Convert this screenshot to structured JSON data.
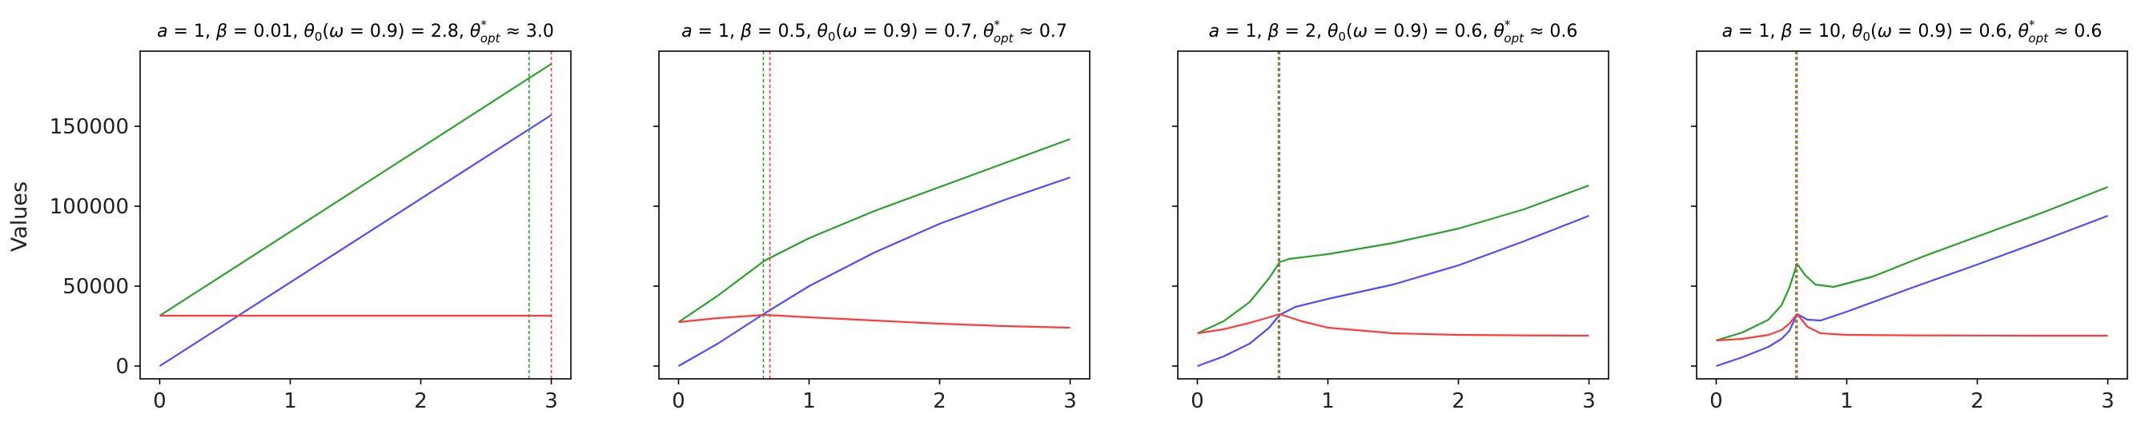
{
  "figure": {
    "ylabel": "Values"
  },
  "chart_data": [
    {
      "type": "line",
      "title_plain": "a = 1, β = 0.01, θ₀(ω = 0.9) = 2.8, θ*opt ≈ 3.0",
      "title_parts": {
        "a": "1",
        "beta": "0.01",
        "theta0": "2.8",
        "omega": "0.9",
        "theta_opt": "3.0"
      },
      "xlim": [
        -0.15,
        3.15
      ],
      "ylim": [
        -8000,
        197000
      ],
      "xticks": [
        0,
        1,
        2,
        3
      ],
      "yticks": [
        0,
        50000,
        100000,
        150000
      ],
      "xtick_labels": [
        "0",
        "1",
        "2",
        "3"
      ],
      "ytick_labels": [
        "0",
        "50000",
        "100000",
        "150000"
      ],
      "vlines": [
        {
          "x": 2.83,
          "color": "#2ca02c"
        },
        {
          "x": 3.0,
          "color": "#ff3b3b"
        }
      ],
      "series": [
        {
          "color": "#2ca02c",
          "x": [
            0,
            3
          ],
          "y": [
            31500,
            189000
          ]
        },
        {
          "color": "#4d4dff",
          "x": [
            0,
            3
          ],
          "y": [
            0,
            157000
          ]
        },
        {
          "color": "#ff3b3b",
          "x": [
            0,
            3
          ],
          "y": [
            31500,
            31500
          ]
        }
      ]
    },
    {
      "type": "line",
      "title_plain": "a = 1, β = 0.5, θ₀(ω = 0.9) = 0.7, θ*opt ≈ 0.7",
      "title_parts": {
        "a": "1",
        "beta": "0.5",
        "theta0": "0.7",
        "omega": "0.9",
        "theta_opt": "0.7"
      },
      "xlim": [
        -0.15,
        3.15
      ],
      "ylim": [
        -8000,
        197000
      ],
      "xticks": [
        0,
        1,
        2,
        3
      ],
      "yticks": [
        0,
        50000,
        100000,
        150000
      ],
      "xtick_labels": [
        "0",
        "1",
        "2",
        "3"
      ],
      "ytick_labels": [
        "",
        "",
        "",
        ""
      ],
      "vlines": [
        {
          "x": 0.65,
          "color": "#2ca02c"
        },
        {
          "x": 0.7,
          "color": "#ff3b3b"
        }
      ],
      "series": [
        {
          "color": "#2ca02c",
          "x": [
            0,
            0.3,
            0.66,
            1.0,
            1.5,
            2.0,
            2.5,
            3.0
          ],
          "y": [
            27500,
            44000,
            66000,
            80000,
            97000,
            112000,
            127000,
            142000
          ]
        },
        {
          "color": "#4d4dff",
          "x": [
            0,
            0.3,
            0.66,
            1.0,
            1.5,
            2.0,
            2.5,
            3.0
          ],
          "y": [
            0,
            14000,
            33000,
            50000,
            71000,
            89000,
            104000,
            118000
          ]
        },
        {
          "color": "#ff3b3b",
          "x": [
            0,
            0.3,
            0.66,
            1.0,
            1.5,
            2.0,
            2.5,
            3.0
          ],
          "y": [
            27500,
            30000,
            32000,
            30500,
            28500,
            26500,
            25000,
            24000
          ]
        }
      ]
    },
    {
      "type": "line",
      "title_plain": "a = 1, β = 2, θ₀(ω = 0.9) = 0.6, θ*opt ≈ 0.6",
      "title_parts": {
        "a": "1",
        "beta": "2",
        "theta0": "0.6",
        "omega": "0.9",
        "theta_opt": "0.6"
      },
      "xlim": [
        -0.15,
        3.15
      ],
      "ylim": [
        -8000,
        197000
      ],
      "xticks": [
        0,
        1,
        2,
        3
      ],
      "yticks": [
        0,
        50000,
        100000,
        150000
      ],
      "xtick_labels": [
        "0",
        "1",
        "2",
        "3"
      ],
      "ytick_labels": [
        "",
        "",
        "",
        ""
      ],
      "vlines": [
        {
          "x": 0.62,
          "color": "#2ca02c"
        },
        {
          "x": 0.63,
          "color": "#ff3b3b"
        }
      ],
      "series": [
        {
          "color": "#2ca02c",
          "x": [
            0,
            0.2,
            0.4,
            0.55,
            0.63,
            0.7,
            1.0,
            1.5,
            2.0,
            2.5,
            3.0
          ],
          "y": [
            20500,
            28000,
            40000,
            55000,
            65000,
            67000,
            70000,
            77000,
            86000,
            98000,
            113000
          ]
        },
        {
          "color": "#4d4dff",
          "x": [
            0,
            0.2,
            0.4,
            0.55,
            0.63,
            0.75,
            1.0,
            1.5,
            2.0,
            2.5,
            3.0
          ],
          "y": [
            0,
            6000,
            14000,
            24000,
            32000,
            37000,
            42000,
            51000,
            63000,
            78000,
            94000
          ]
        },
        {
          "color": "#ff3b3b",
          "x": [
            0,
            0.2,
            0.4,
            0.55,
            0.63,
            0.8,
            1.0,
            1.5,
            2.0,
            2.5,
            3.0
          ],
          "y": [
            20500,
            23000,
            27000,
            30500,
            32500,
            28000,
            24000,
            20500,
            19500,
            19200,
            19000
          ]
        }
      ]
    },
    {
      "type": "line",
      "title_plain": "a = 1, β = 10, θ₀(ω = 0.9) = 0.6, θ*opt ≈ 0.6",
      "title_parts": {
        "a": "1",
        "beta": "10",
        "theta0": "0.6",
        "omega": "0.9",
        "theta_opt": "0.6"
      },
      "xlim": [
        -0.15,
        3.15
      ],
      "ylim": [
        -8000,
        197000
      ],
      "xticks": [
        0,
        1,
        2,
        3
      ],
      "yticks": [
        0,
        50000,
        100000,
        150000
      ],
      "xtick_labels": [
        "0",
        "1",
        "2",
        "3"
      ],
      "ytick_labels": [
        "",
        "",
        "",
        ""
      ],
      "vlines": [
        {
          "x": 0.61,
          "color": "#2ca02c"
        },
        {
          "x": 0.62,
          "color": "#ff3b3b"
        }
      ],
      "series": [
        {
          "color": "#2ca02c",
          "x": [
            0,
            0.2,
            0.4,
            0.5,
            0.56,
            0.62,
            0.68,
            0.76,
            0.9,
            1.2,
            1.6,
            2.0,
            2.5,
            3.0
          ],
          "y": [
            16000,
            21000,
            29000,
            38000,
            49000,
            64000,
            57000,
            51000,
            49500,
            56000,
            69000,
            81000,
            96000,
            112000
          ]
        },
        {
          "color": "#4d4dff",
          "x": [
            0,
            0.2,
            0.4,
            0.5,
            0.56,
            0.62,
            0.7,
            0.8,
            1.0,
            1.5,
            2.0,
            2.5,
            3.0
          ],
          "y": [
            0,
            5500,
            12000,
            17000,
            22000,
            32500,
            29000,
            28500,
            34000,
            49000,
            63500,
            78500,
            94000
          ]
        },
        {
          "color": "#ff3b3b",
          "x": [
            0,
            0.2,
            0.4,
            0.5,
            0.56,
            0.62,
            0.7,
            0.8,
            1.0,
            1.5,
            2.0,
            2.5,
            3.0
          ],
          "y": [
            16000,
            17000,
            19500,
            22500,
            26500,
            32500,
            24500,
            20500,
            19500,
            19200,
            19100,
            19000,
            19000
          ]
        }
      ]
    }
  ]
}
